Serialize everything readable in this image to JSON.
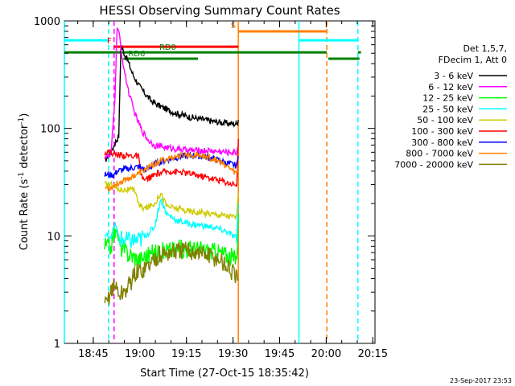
{
  "chart_data": {
    "type": "line",
    "title": "HESSI Observing Summary Count Rates",
    "xlabel": "Start Time (27-Oct-15 18:35:42)",
    "ylabel_main": "Count Rate (s",
    "ylabel_sup1": "-1",
    "ylabel_mid": " detector",
    "ylabel_sup2": "-1",
    "ylabel_end": ")",
    "xlim_minutes": [
      0,
      100
    ],
    "ylim": [
      1,
      1000
    ],
    "yscale": "log",
    "x_ticks": [
      {
        "label": "18:45",
        "minute": 9.3
      },
      {
        "label": "19:00",
        "minute": 24.3
      },
      {
        "label": "19:15",
        "minute": 39.3
      },
      {
        "label": "19:30",
        "minute": 54.3
      },
      {
        "label": "19:45",
        "minute": 69.3
      },
      {
        "label": "20:00",
        "minute": 84.3
      },
      {
        "label": "20:15",
        "minute": 99.3
      }
    ],
    "y_ticks": [
      {
        "label": "1",
        "value": 1
      },
      {
        "label": "10",
        "value": 10
      },
      {
        "label": "100",
        "value": 100
      },
      {
        "label": "1000",
        "value": 1000
      }
    ],
    "legend_header": [
      "Det 1,5,7,",
      "FDecim 1, Att 0"
    ],
    "series": [
      {
        "name": "3 - 6 keV",
        "color": "#000000",
        "points": [
          [
            13,
            50
          ],
          [
            14,
            55
          ],
          [
            15,
            60
          ],
          [
            16.5,
            75
          ],
          [
            17.5,
            85
          ],
          [
            18.2,
            600
          ],
          [
            19,
            520
          ],
          [
            20.5,
            420
          ],
          [
            22,
            320
          ],
          [
            24,
            250
          ],
          [
            26,
            210
          ],
          [
            28,
            180
          ],
          [
            30,
            165
          ],
          [
            33,
            150
          ],
          [
            36,
            138
          ],
          [
            40,
            128
          ],
          [
            44,
            122
          ],
          [
            48,
            116
          ],
          [
            52,
            112
          ],
          [
            55.5,
            110
          ],
          [
            56,
            120
          ]
        ]
      },
      {
        "name": "6 - 12 keV",
        "color": "#ff00ff",
        "points": [
          [
            13,
            55
          ],
          [
            15,
            55
          ],
          [
            16.3,
            200
          ],
          [
            17,
            900
          ],
          [
            17.6,
            760
          ],
          [
            18.5,
            480
          ],
          [
            19.5,
            320
          ],
          [
            21,
            200
          ],
          [
            23,
            130
          ],
          [
            25,
            95
          ],
          [
            27,
            78
          ],
          [
            29,
            70
          ],
          [
            32,
            67
          ],
          [
            35,
            65
          ],
          [
            39,
            63
          ],
          [
            43,
            62
          ],
          [
            47,
            62
          ],
          [
            52,
            60
          ],
          [
            55.5,
            60
          ],
          [
            56,
            70
          ]
        ]
      },
      {
        "name": "12 - 25 keV",
        "color": "#00ff00",
        "points": [
          [
            13,
            8
          ],
          [
            15,
            8
          ],
          [
            16.5,
            12
          ],
          [
            18,
            8
          ],
          [
            20,
            7
          ],
          [
            24,
            6
          ],
          [
            26,
            6.5
          ],
          [
            30,
            7
          ],
          [
            34,
            7.4
          ],
          [
            38,
            7.6
          ],
          [
            42,
            7.6
          ],
          [
            46,
            7.3
          ],
          [
            50,
            7
          ],
          [
            53,
            6.5
          ],
          [
            55.5,
            6
          ],
          [
            56,
            16
          ]
        ]
      },
      {
        "name": "25 - 50 keV",
        "color": "#00ffff",
        "points": [
          [
            13,
            10
          ],
          [
            15,
            10
          ],
          [
            16.5,
            13
          ],
          [
            17.5,
            9.5
          ],
          [
            20,
            9
          ],
          [
            24,
            9
          ],
          [
            26,
            10
          ],
          [
            29,
            12
          ],
          [
            31,
            22
          ],
          [
            33,
            16
          ],
          [
            36,
            14
          ],
          [
            40,
            13
          ],
          [
            44,
            12.5
          ],
          [
            48,
            12
          ],
          [
            52,
            11
          ],
          [
            55.5,
            9.5
          ],
          [
            56,
            20
          ]
        ]
      },
      {
        "name": "50 - 100 keV",
        "color": "#cccc00",
        "points": [
          [
            13,
            30
          ],
          [
            16,
            30
          ],
          [
            17,
            27
          ],
          [
            20,
            27
          ],
          [
            23,
            26
          ],
          [
            24,
            19
          ],
          [
            26,
            18
          ],
          [
            29,
            20
          ],
          [
            31,
            25
          ],
          [
            33,
            19
          ],
          [
            36,
            18
          ],
          [
            40,
            17
          ],
          [
            44,
            16.5
          ],
          [
            48,
            16
          ],
          [
            52,
            15.5
          ],
          [
            55.5,
            15
          ],
          [
            56,
            25
          ]
        ]
      },
      {
        "name": "100 - 300 keV",
        "color": "#ff0000",
        "points": [
          [
            13,
            60
          ],
          [
            15,
            60
          ],
          [
            16.5,
            57
          ],
          [
            20,
            56
          ],
          [
            24,
            55
          ],
          [
            24.5,
            36
          ],
          [
            26,
            33
          ],
          [
            30,
            38
          ],
          [
            34,
            40
          ],
          [
            38,
            39
          ],
          [
            42,
            37
          ],
          [
            46,
            35
          ],
          [
            50,
            33
          ],
          [
            53,
            31
          ],
          [
            55.5,
            30
          ],
          [
            56,
            80
          ]
        ]
      },
      {
        "name": "300 - 800 keV",
        "color": "#0000ff",
        "points": [
          [
            13,
            37
          ],
          [
            16,
            37
          ],
          [
            17,
            40
          ],
          [
            20,
            42
          ],
          [
            24,
            44
          ],
          [
            26,
            41
          ],
          [
            30,
            48
          ],
          [
            34,
            52
          ],
          [
            38,
            55
          ],
          [
            42,
            56
          ],
          [
            46,
            54
          ],
          [
            50,
            50
          ],
          [
            53,
            47
          ],
          [
            55.5,
            45
          ],
          [
            56,
            55
          ]
        ]
      },
      {
        "name": "800 - 7000 keV",
        "color": "#ff8000",
        "points": [
          [
            13,
            28
          ],
          [
            15,
            28
          ],
          [
            16.5,
            30
          ],
          [
            20,
            34
          ],
          [
            24,
            38
          ],
          [
            28,
            45
          ],
          [
            32,
            51
          ],
          [
            36,
            55
          ],
          [
            40,
            57
          ],
          [
            44,
            56
          ],
          [
            48,
            52
          ],
          [
            51,
            47
          ],
          [
            53,
            43
          ],
          [
            55.5,
            38
          ],
          [
            56,
            45
          ]
        ]
      },
      {
        "name": "7000 - 20000 keV",
        "color": "#808000",
        "points": [
          [
            13,
            2.2
          ],
          [
            14,
            2.5
          ],
          [
            15,
            3.2
          ],
          [
            16.5,
            3.4
          ],
          [
            18,
            2.8
          ],
          [
            20,
            3.2
          ],
          [
            23,
            4.5
          ],
          [
            26,
            5
          ],
          [
            30,
            6.5
          ],
          [
            34,
            7
          ],
          [
            38,
            7.3
          ],
          [
            42,
            7.2
          ],
          [
            46,
            6.6
          ],
          [
            50,
            6
          ],
          [
            53,
            5
          ],
          [
            55.5,
            4
          ],
          [
            56,
            4
          ]
        ]
      }
    ],
    "top_bars": [
      {
        "label": "",
        "color": "#00ffff",
        "y": 660,
        "x0": 0,
        "x1": 14
      },
      {
        "label": "",
        "color": "#00ffff",
        "y": 660,
        "x0": 75.5,
        "x1": 94.5
      },
      {
        "label": "F",
        "color": "#ff0000",
        "y": 575,
        "x0": 16,
        "x1": 56
      },
      {
        "label": "S",
        "color": "#ff8000",
        "y": 800,
        "x0": 56,
        "x1": 84.5
      },
      {
        "label": "",
        "color": "#008000",
        "y": 510,
        "x0": 0,
        "x1": 29
      },
      {
        "label": "RD0",
        "color": "#008000",
        "y": 510,
        "x0": 29,
        "x1": 84.5
      },
      {
        "label": "",
        "color": "#008000",
        "y": 510,
        "x0": 94.5,
        "x1": 95.5
      },
      {
        "label": "RD6",
        "color": "#008000",
        "y": 445,
        "x0": 19,
        "x1": 43
      },
      {
        "label": "",
        "color": "#008000",
        "y": 445,
        "x0": 85,
        "x1": 95
      }
    ],
    "vertical_lines": [
      {
        "minute": 0,
        "color": "#00ffff",
        "dashed": false
      },
      {
        "minute": 14.2,
        "color": "#00ffff",
        "dashed": true
      },
      {
        "minute": 16,
        "color": "#ff00ff",
        "dashed": true
      },
      {
        "minute": 56,
        "color": "#ff8000",
        "dashed": false
      },
      {
        "minute": 75.5,
        "color": "#00ffff",
        "dashed": false
      },
      {
        "minute": 84.5,
        "color": "#ff8000",
        "dashed": true
      },
      {
        "minute": 94.5,
        "color": "#00ffff",
        "dashed": true
      }
    ],
    "footer": "23-Sep-2017 23:53"
  }
}
